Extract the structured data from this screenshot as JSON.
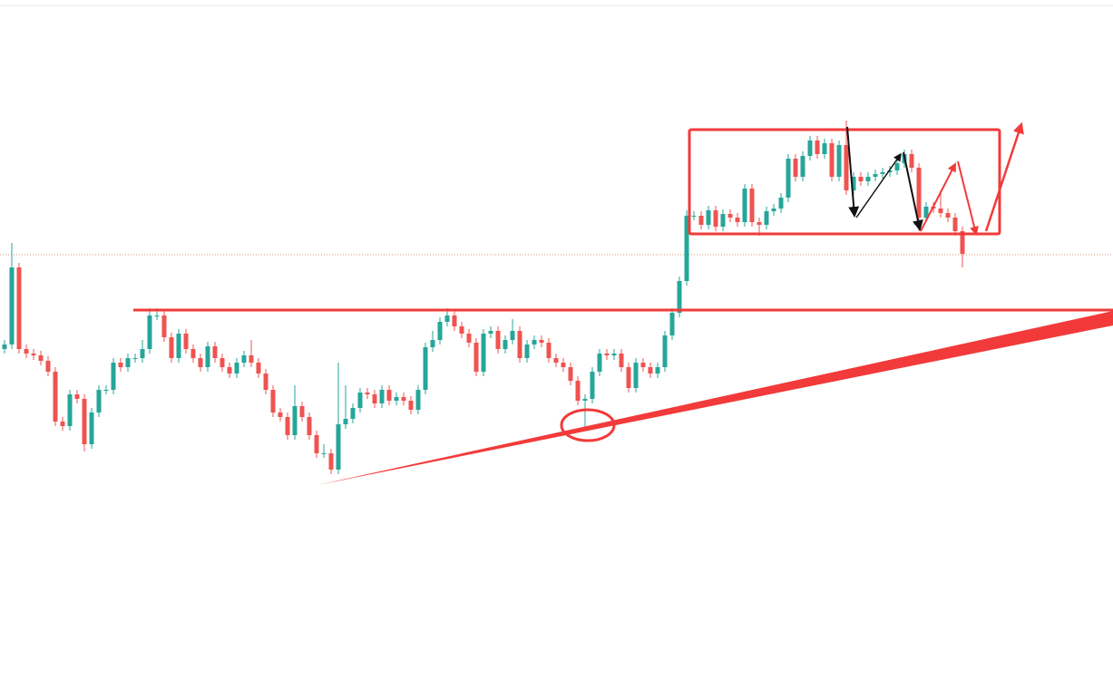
{
  "chart_data": {
    "type": "candlestick",
    "up_color": "#26a69a",
    "down_color": "#ef5350",
    "ylim": [
      0,
      760
    ],
    "open": [
      375,
      380,
      465,
      375,
      370,
      368,
      362,
      350,
      295,
      290,
      325,
      320,
      270,
      305,
      330,
      330,
      360,
      355,
      365,
      365,
      375,
      412,
      412,
      388,
      365,
      392,
      375,
      365,
      355,
      378,
      365,
      355,
      348,
      360,
      368,
      360,
      348,
      330,
      305,
      300,
      280,
      312,
      300,
      280,
      260,
      260,
      242,
      292,
      298,
      310,
      327,
      325,
      315,
      330,
      318,
      322,
      318,
      308,
      330,
      377,
      385,
      405,
      412,
      400,
      392,
      382,
      350,
      392,
      395,
      375,
      385,
      395,
      365,
      380,
      385,
      382,
      365,
      360,
      355,
      340,
      318,
      320,
      350,
      370,
      368,
      370,
      355,
      332,
      360,
      355,
      348,
      355,
      390,
      415,
      450,
      522,
      522,
      512,
      528,
      510,
      524,
      520,
      515,
      552,
      515,
      512,
      527,
      530,
      542,
      585,
      565,
      588,
      605,
      590,
      602,
      565,
      600,
      550,
      565,
      560,
      565,
      568,
      570,
      572,
      580,
      590,
      575,
      520,
      532,
      530,
      525,
      520,
      505
    ],
    "high": [
      385,
      492,
      470,
      380,
      375,
      373,
      367,
      355,
      300,
      330,
      330,
      325,
      310,
      335,
      335,
      365,
      365,
      370,
      370,
      385,
      420,
      420,
      417,
      393,
      397,
      397,
      380,
      370,
      383,
      383,
      370,
      360,
      365,
      373,
      385,
      365,
      353,
      335,
      310,
      305,
      335,
      317,
      305,
      285,
      270,
      265,
      360,
      335,
      315,
      332,
      332,
      330,
      335,
      335,
      327,
      327,
      323,
      335,
      382,
      395,
      410,
      420,
      417,
      405,
      397,
      387,
      397,
      400,
      400,
      390,
      408,
      400,
      385,
      390,
      390,
      387,
      370,
      365,
      360,
      345,
      325,
      355,
      375,
      375,
      375,
      375,
      360,
      365,
      365,
      360,
      360,
      395,
      420,
      455,
      528,
      527,
      527,
      533,
      533,
      529,
      529,
      525,
      557,
      557,
      520,
      532,
      535,
      547,
      590,
      590,
      593,
      610,
      610,
      607,
      607,
      605,
      627,
      570,
      570,
      570,
      573,
      575,
      577,
      585,
      595,
      595,
      580,
      537,
      537,
      550,
      530,
      525,
      510
    ],
    "low": [
      370,
      375,
      370,
      365,
      363,
      357,
      345,
      290,
      285,
      285,
      315,
      262,
      265,
      300,
      325,
      325,
      350,
      350,
      360,
      360,
      370,
      407,
      383,
      360,
      360,
      370,
      360,
      350,
      350,
      360,
      350,
      343,
      343,
      355,
      355,
      343,
      325,
      300,
      295,
      275,
      275,
      295,
      275,
      255,
      255,
      237,
      237,
      287,
      293,
      305,
      320,
      310,
      310,
      313,
      313,
      313,
      303,
      303,
      325,
      372,
      380,
      400,
      395,
      387,
      377,
      345,
      345,
      387,
      370,
      370,
      380,
      360,
      360,
      375,
      377,
      360,
      355,
      350,
      335,
      313,
      288,
      315,
      345,
      363,
      363,
      350,
      327,
      327,
      350,
      343,
      343,
      350,
      385,
      410,
      445,
      517,
      507,
      507,
      505,
      505,
      515,
      510,
      510,
      510,
      500,
      507,
      522,
      525,
      537,
      560,
      560,
      583,
      585,
      585,
      560,
      560,
      545,
      545,
      555,
      555,
      560,
      563,
      565,
      567,
      575,
      570,
      505,
      515,
      525,
      520,
      515,
      500,
      465
    ],
    "close": [
      380,
      465,
      375,
      370,
      368,
      362,
      350,
      295,
      290,
      325,
      320,
      270,
      305,
      330,
      330,
      360,
      355,
      365,
      365,
      375,
      412,
      412,
      388,
      365,
      392,
      375,
      365,
      355,
      378,
      365,
      355,
      348,
      360,
      368,
      360,
      348,
      330,
      305,
      300,
      280,
      312,
      300,
      280,
      260,
      260,
      242,
      292,
      298,
      310,
      327,
      325,
      315,
      330,
      318,
      322,
      318,
      308,
      330,
      377,
      385,
      405,
      412,
      400,
      392,
      382,
      350,
      392,
      395,
      375,
      385,
      395,
      365,
      380,
      385,
      382,
      365,
      360,
      355,
      340,
      318,
      320,
      350,
      370,
      368,
      370,
      355,
      332,
      360,
      355,
      348,
      355,
      390,
      415,
      450,
      522,
      522,
      512,
      528,
      510,
      524,
      520,
      515,
      552,
      515,
      512,
      527,
      530,
      542,
      585,
      565,
      588,
      605,
      590,
      602,
      565,
      600,
      550,
      565,
      560,
      565,
      568,
      570,
      572,
      580,
      590,
      575,
      520,
      532,
      530,
      525,
      520,
      505,
      480
    ]
  }
}
